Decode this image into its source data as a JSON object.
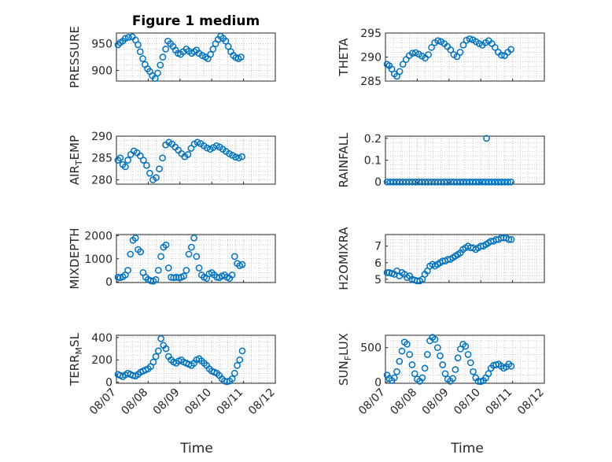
{
  "chart_data": [
    {
      "type": "scatter",
      "ylabel": "PRESSURE",
      "title": "Figure 1 medium",
      "ylim": [
        880,
        970
      ],
      "yticks": [
        900,
        950
      ],
      "ytick_labels": [
        "900",
        "950"
      ],
      "xlim": [
        0,
        5
      ],
      "xticks": [
        0,
        1,
        2,
        3,
        4,
        5
      ],
      "x": [
        0.05,
        0.12,
        0.2,
        0.28,
        0.38,
        0.5,
        0.6,
        0.68,
        0.75,
        0.83,
        0.9,
        0.98,
        1.05,
        1.13,
        1.22,
        1.3,
        1.38,
        1.46,
        1.55,
        1.62,
        1.7,
        1.78,
        1.86,
        1.94,
        2.02,
        2.1,
        2.2,
        2.28,
        2.37,
        2.45,
        2.52,
        2.6,
        2.7,
        2.8,
        2.88,
        2.96,
        3.04,
        3.12,
        3.2,
        3.28,
        3.36,
        3.44,
        3.52,
        3.6,
        3.68,
        3.76,
        3.84,
        3.92
      ],
      "y": [
        948,
        952,
        955,
        960,
        962,
        963,
        957,
        948,
        935,
        922,
        911,
        903,
        898,
        890,
        885,
        895,
        910,
        925,
        940,
        955,
        950,
        945,
        938,
        932,
        930,
        935,
        940,
        936,
        932,
        935,
        938,
        932,
        928,
        925,
        922,
        930,
        940,
        950,
        958,
        964,
        960,
        955,
        945,
        935,
        928,
        924,
        922,
        925
      ]
    },
    {
      "type": "scatter",
      "ylabel": "THETA",
      "ylim": [
        285,
        295
      ],
      "yticks": [
        285,
        290,
        295
      ],
      "ytick_labels": [
        "285",
        "290",
        "295"
      ],
      "xlim": [
        0,
        5
      ],
      "xticks": [
        0,
        1,
        2,
        3,
        4,
        5
      ],
      "x": [
        0.05,
        0.12,
        0.2,
        0.28,
        0.36,
        0.45,
        0.55,
        0.65,
        0.75,
        0.85,
        0.95,
        1.05,
        1.15,
        1.25,
        1.35,
        1.45,
        1.55,
        1.65,
        1.75,
        1.85,
        1.95,
        2.05,
        2.15,
        2.25,
        2.35,
        2.45,
        2.55,
        2.65,
        2.75,
        2.85,
        2.95,
        3.05,
        3.15,
        3.25,
        3.35,
        3.45,
        3.55,
        3.65,
        3.75,
        3.85,
        3.95
      ],
      "y": [
        288.5,
        288.2,
        287.5,
        286.5,
        286,
        287,
        288.5,
        289.5,
        290.3,
        290.8,
        290.9,
        290.6,
        290.2,
        289.8,
        290.5,
        292,
        293,
        293.4,
        293.2,
        292.8,
        292.2,
        291.5,
        290.5,
        290.1,
        291,
        292.5,
        293.5,
        293.8,
        293.6,
        293.2,
        292.8,
        292.5,
        293,
        293.4,
        292.8,
        292,
        291,
        290.4,
        290.3,
        291,
        291.6
      ]
    },
    {
      "type": "scatter",
      "ylabel": "AIR_TEMP",
      "ylim": [
        279,
        290
      ],
      "yticks": [
        280,
        285,
        290
      ],
      "ytick_labels": [
        "280",
        "285",
        "290"
      ],
      "xlim": [
        0,
        5
      ],
      "xticks": [
        0,
        1,
        2,
        3,
        4,
        5
      ],
      "x": [
        0.05,
        0.12,
        0.2,
        0.28,
        0.36,
        0.45,
        0.55,
        0.65,
        0.75,
        0.85,
        0.95,
        1.05,
        1.15,
        1.25,
        1.35,
        1.45,
        1.55,
        1.65,
        1.75,
        1.85,
        1.95,
        2.05,
        2.15,
        2.25,
        2.35,
        2.45,
        2.55,
        2.65,
        2.75,
        2.85,
        2.95,
        3.05,
        3.15,
        3.25,
        3.35,
        3.45,
        3.55,
        3.65,
        3.75,
        3.85,
        3.95
      ],
      "y": [
        284.5,
        285,
        283.5,
        283,
        284.5,
        285.8,
        286.6,
        286.2,
        285.5,
        284.5,
        283.3,
        281.5,
        280,
        280.5,
        282.5,
        285,
        288,
        288.6,
        288.2,
        287.5,
        286.8,
        286,
        285.3,
        285.8,
        287.2,
        288.2,
        288.6,
        288.3,
        287.8,
        287.3,
        287,
        287.4,
        287.8,
        287.5,
        287,
        286.5,
        286,
        285.6,
        285.2,
        285,
        285.3
      ]
    },
    {
      "type": "scatter",
      "ylabel": "RAINFALL",
      "ylim": [
        -0.01,
        0.21
      ],
      "yticks": [
        0,
        0.1,
        0.2
      ],
      "ytick_labels": [
        "0",
        "0.1",
        "0.2"
      ],
      "xlim": [
        0,
        5
      ],
      "xticks": [
        0,
        1,
        2,
        3,
        4,
        5
      ],
      "x": [
        0.05,
        0.15,
        0.25,
        0.35,
        0.45,
        0.55,
        0.65,
        0.75,
        0.85,
        0.95,
        1.05,
        1.15,
        1.25,
        1.35,
        1.45,
        1.55,
        1.65,
        1.75,
        1.85,
        1.95,
        2.05,
        2.15,
        2.25,
        2.35,
        2.45,
        2.55,
        2.65,
        2.75,
        2.85,
        2.95,
        3.05,
        3.15,
        3.25,
        3.35,
        3.45,
        3.55,
        3.65,
        3.75,
        3.85,
        3.95,
        3.18
      ],
      "y": [
        0,
        0,
        0,
        0,
        0,
        0,
        0,
        0,
        0,
        0,
        0,
        0,
        0,
        0,
        0,
        0,
        0,
        0,
        0,
        0,
        0,
        0,
        0,
        0,
        0,
        0,
        0,
        0,
        0,
        0,
        0,
        0,
        0,
        0,
        0,
        0,
        0,
        0,
        0,
        0,
        0.2
      ]
    },
    {
      "type": "scatter",
      "ylabel": "MIXDEPTH",
      "ylim": [
        -30,
        2050
      ],
      "yticks": [
        0,
        1000,
        2000
      ],
      "ytick_labels": [
        "0",
        "1000",
        "2000"
      ],
      "xlim": [
        0,
        5
      ],
      "xticks": [
        0,
        1,
        2,
        3,
        4,
        5
      ],
      "x": [
        0.05,
        0.12,
        0.2,
        0.28,
        0.36,
        0.44,
        0.52,
        0.6,
        0.68,
        0.76,
        0.84,
        0.92,
        1.0,
        1.08,
        1.16,
        1.24,
        1.32,
        1.4,
        1.48,
        1.56,
        1.64,
        1.72,
        1.8,
        1.88,
        1.96,
        2.04,
        2.12,
        2.2,
        2.28,
        2.36,
        2.44,
        2.52,
        2.6,
        2.68,
        2.76,
        2.84,
        2.92,
        3.0,
        3.08,
        3.16,
        3.24,
        3.32,
        3.4,
        3.48,
        3.56,
        3.64,
        3.72,
        3.8,
        3.88,
        3.96
      ],
      "y": [
        200,
        180,
        220,
        300,
        500,
        1200,
        1800,
        1900,
        1400,
        1300,
        400,
        200,
        100,
        50,
        30,
        100,
        500,
        1100,
        1500,
        1600,
        600,
        200,
        180,
        200,
        180,
        200,
        250,
        500,
        1200,
        1500,
        1900,
        1100,
        600,
        300,
        200,
        150,
        350,
        400,
        300,
        200,
        180,
        250,
        300,
        200,
        150,
        300,
        1100,
        800,
        700,
        750
      ]
    },
    {
      "type": "scatter",
      "ylabel": "H2OMIXRA",
      "ylim": [
        4.8,
        7.7
      ],
      "yticks": [
        5,
        6,
        7
      ],
      "ytick_labels": [
        "5",
        "6",
        "7"
      ],
      "xlim": [
        0,
        5
      ],
      "xticks": [
        0,
        1,
        2,
        3,
        4,
        5
      ],
      "x": [
        0.05,
        0.12,
        0.2,
        0.28,
        0.36,
        0.44,
        0.52,
        0.6,
        0.68,
        0.76,
        0.84,
        0.92,
        1.0,
        1.08,
        1.16,
        1.24,
        1.32,
        1.4,
        1.48,
        1.56,
        1.64,
        1.72,
        1.8,
        1.88,
        1.96,
        2.04,
        2.12,
        2.2,
        2.28,
        2.36,
        2.44,
        2.52,
        2.6,
        2.68,
        2.76,
        2.84,
        2.92,
        3.0,
        3.08,
        3.16,
        3.24,
        3.32,
        3.4,
        3.48,
        3.56,
        3.64,
        3.72,
        3.8,
        3.88,
        3.96
      ],
      "y": [
        5.4,
        5.4,
        5.35,
        5.3,
        5.5,
        5.2,
        5.4,
        5.3,
        5.1,
        5.2,
        5.0,
        4.95,
        4.9,
        4.9,
        5.0,
        5.3,
        5.5,
        5.8,
        5.9,
        5.8,
        5.9,
        6.0,
        6.1,
        6.1,
        6.2,
        6.2,
        6.3,
        6.4,
        6.5,
        6.6,
        6.8,
        6.9,
        7.0,
        6.9,
        6.9,
        6.8,
        6.9,
        7.0,
        7.0,
        7.1,
        7.2,
        7.3,
        7.3,
        7.4,
        7.4,
        7.5,
        7.5,
        7.5,
        7.4,
        7.4
      ]
    },
    {
      "type": "scatter",
      "ylabel": "TERR_MSL",
      "ylim": [
        -10,
        420
      ],
      "yticks": [
        0,
        200,
        400
      ],
      "ytick_labels": [
        "0",
        "200",
        "400"
      ],
      "xlim": [
        0,
        5
      ],
      "xticks": [
        0,
        1,
        2,
        3,
        4,
        5
      ],
      "x": [
        0.05,
        0.12,
        0.2,
        0.28,
        0.36,
        0.44,
        0.52,
        0.6,
        0.68,
        0.76,
        0.84,
        0.92,
        1.0,
        1.08,
        1.16,
        1.24,
        1.32,
        1.4,
        1.48,
        1.56,
        1.64,
        1.72,
        1.8,
        1.88,
        1.96,
        2.04,
        2.12,
        2.2,
        2.28,
        2.36,
        2.44,
        2.52,
        2.6,
        2.68,
        2.76,
        2.84,
        2.92,
        3.0,
        3.08,
        3.16,
        3.24,
        3.32,
        3.4,
        3.48,
        3.56,
        3.64,
        3.72,
        3.8,
        3.88,
        3.96
      ],
      "y": [
        70,
        60,
        50,
        65,
        80,
        70,
        60,
        55,
        70,
        90,
        100,
        110,
        120,
        140,
        180,
        230,
        280,
        390,
        330,
        300,
        230,
        200,
        180,
        170,
        190,
        200,
        180,
        170,
        160,
        150,
        170,
        200,
        210,
        190,
        170,
        150,
        120,
        100,
        90,
        80,
        60,
        30,
        10,
        5,
        10,
        30,
        80,
        150,
        200,
        280
      ]
    },
    {
      "type": "scatter",
      "ylabel": "SUN_FLUX",
      "ylim": [
        -20,
        680
      ],
      "yticks": [
        0,
        500
      ],
      "ytick_labels": [
        "0",
        "500"
      ],
      "xlim": [
        0,
        5
      ],
      "xticks": [
        0,
        1,
        2,
        3,
        4,
        5
      ],
      "x": [
        0.05,
        0.12,
        0.2,
        0.28,
        0.36,
        0.44,
        0.52,
        0.6,
        0.68,
        0.76,
        0.84,
        0.92,
        1.0,
        1.08,
        1.16,
        1.24,
        1.32,
        1.4,
        1.48,
        1.56,
        1.64,
        1.72,
        1.8,
        1.88,
        1.96,
        2.04,
        2.12,
        2.2,
        2.28,
        2.36,
        2.44,
        2.52,
        2.6,
        2.68,
        2.76,
        2.84,
        2.92,
        3.0,
        3.08,
        3.16,
        3.24,
        3.32,
        3.4,
        3.48,
        3.56,
        3.64,
        3.72,
        3.8,
        3.88,
        3.96
      ],
      "y": [
        100,
        50,
        20,
        60,
        150,
        300,
        450,
        580,
        550,
        400,
        250,
        120,
        40,
        10,
        60,
        200,
        400,
        600,
        650,
        620,
        500,
        380,
        250,
        120,
        40,
        10,
        50,
        180,
        350,
        480,
        550,
        520,
        400,
        280,
        150,
        60,
        10,
        5,
        20,
        60,
        120,
        200,
        240,
        250,
        260,
        230,
        200,
        220,
        260,
        230
      ]
    }
  ],
  "x_tick_labels": [
    "08/07",
    "08/08",
    "08/09",
    "08/10",
    "08/11",
    "08/12"
  ],
  "x_axis_label": "Time",
  "marker_color": "#0072BD"
}
